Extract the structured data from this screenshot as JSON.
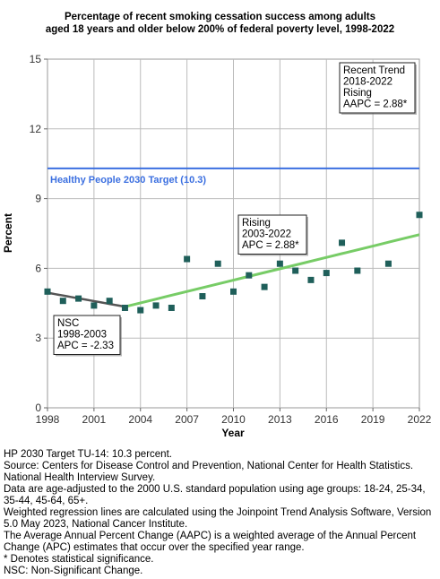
{
  "chart_data": {
    "type": "scatter",
    "title_lines": [
      "Percentage of recent smoking cessation success among adults",
      "aged 18 years and older below 200% of federal poverty level, 1998-2022"
    ],
    "xlabel": "Year",
    "ylabel": "Percent",
    "xlim": [
      1998,
      2022
    ],
    "ylim": [
      0,
      15
    ],
    "x_ticks": [
      1998,
      2001,
      2004,
      2007,
      2010,
      2013,
      2016,
      2019,
      2022
    ],
    "y_ticks": [
      0,
      3,
      6,
      9,
      12,
      15
    ],
    "grid": true,
    "series": [
      {
        "name": "",
        "points": [
          {
            "x": 1998,
            "y": 5.0
          },
          {
            "x": 1999,
            "y": 4.6
          },
          {
            "x": 2000,
            "y": 4.7
          },
          {
            "x": 2001,
            "y": 4.4
          },
          {
            "x": 2002,
            "y": 4.6
          },
          {
            "x": 2003,
            "y": 4.3
          },
          {
            "x": 2004,
            "y": 4.2
          },
          {
            "x": 2005,
            "y": 4.4
          },
          {
            "x": 2006,
            "y": 4.3
          },
          {
            "x": 2007,
            "y": 6.4
          },
          {
            "x": 2008,
            "y": 4.8
          },
          {
            "x": 2009,
            "y": 6.2
          },
          {
            "x": 2010,
            "y": 5.0
          },
          {
            "x": 2011,
            "y": 5.7
          },
          {
            "x": 2012,
            "y": 5.2
          },
          {
            "x": 2013,
            "y": 6.2
          },
          {
            "x": 2014,
            "y": 5.9
          },
          {
            "x": 2015,
            "y": 5.5
          },
          {
            "x": 2016,
            "y": 5.8
          },
          {
            "x": 2017,
            "y": 7.1
          },
          {
            "x": 2018,
            "y": 5.9
          },
          {
            "x": 2020,
            "y": 6.2
          },
          {
            "x": 2022,
            "y": 8.3
          }
        ]
      }
    ],
    "trend_segments": [
      {
        "x": [
          1998,
          2003
        ],
        "y": [
          4.95,
          4.35
        ],
        "color": "#555555"
      },
      {
        "x": [
          2003,
          2022
        ],
        "y": [
          4.35,
          7.45
        ],
        "color": "#77cc66"
      }
    ],
    "target": {
      "value": 10.3,
      "label": "Healthy People 2030 Target (10.3)",
      "color": "#3b6fe0"
    },
    "annotations": {
      "recent_trend": [
        "Recent Trend",
        "2018-2022",
        "Rising",
        "AAPC =  2.88*"
      ],
      "rising": [
        "Rising",
        "2003-2022",
        "APC =  2.88*"
      ],
      "nsc": [
        "NSC",
        "1998-2003",
        "APC = -2.33"
      ]
    },
    "colors": {
      "marker": "#1f5f5a",
      "grid": "#bbbbbb"
    }
  },
  "footnotes": [
    "HP 2030 Target TU-14: 10.3 percent.",
    "Source: Centers for Disease Control and Prevention, National Center for Health Statistics. National Health Interview Survey.",
    "Data are age-adjusted to the 2000 U.S. standard population using age groups: 18-24, 25-34, 35-44, 45-64, 65+.",
    "Weighted regression lines are calculated using the Joinpoint Trend Analysis Software, Version 5.0 May 2023, National Cancer Institute.",
    "The Average Annual Percent Change (AAPC) is a weighted average of the Annual Percent Change (APC) estimates that occur over the specified year range.",
    "* Denotes statistical significance.",
    "NSC: Non-Significant Change."
  ]
}
